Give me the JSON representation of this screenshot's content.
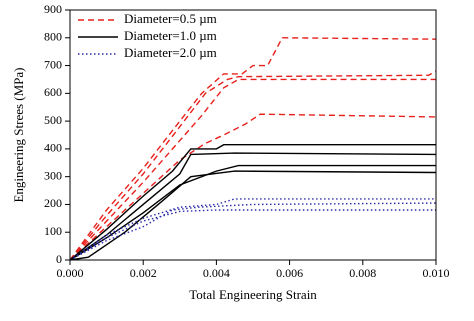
{
  "chart_data": {
    "type": "line",
    "xlabel": "Total Engineering Strain",
    "ylabel": "Engineering Strees (MPa)",
    "xlim": [
      0,
      0.01
    ],
    "xticks": [
      {
        "value": 0,
        "label": "0.000"
      },
      0.002,
      0.004,
      0.006,
      0.008,
      {
        "value": 0.01,
        "label": "0.010"
      }
    ],
    "ylim": [
      0,
      900
    ],
    "yticks": [
      0,
      100,
      200,
      300,
      400,
      500,
      600,
      700,
      800,
      900
    ],
    "legend": "upper-left",
    "series": [
      {
        "name": "Diameter=0.5 µm",
        "color": "#e8201c",
        "dash": "dashed",
        "lines": [
          {
            "x": [
              0,
              0.001,
              0.002,
              0.003,
              0.0036,
              0.0042,
              0.0047,
              0.005,
              0.0054,
              0.0058,
              0.01
            ],
            "values": [
              0,
              180,
              330,
              500,
              600,
              670,
              670,
              700,
              700,
              800,
              795
            ]
          },
          {
            "x": [
              0,
              0.001,
              0.002,
              0.003,
              0.0037,
              0.0043,
              0.0046,
              0.0098,
              0.01
            ],
            "values": [
              0,
              160,
              310,
              480,
              600,
              650,
              660,
              665,
              680
            ]
          },
          {
            "x": [
              0,
              0.001,
              0.002,
              0.003,
              0.0036,
              0.0042,
              0.0046,
              0.01
            ],
            "values": [
              0,
              140,
              280,
              430,
              520,
              620,
              650,
              650
            ]
          },
          {
            "x": [
              0,
              0.001,
              0.002,
              0.003,
              0.0037,
              0.0042,
              0.0048,
              0.0052,
              0.01
            ],
            "values": [
              0,
              120,
              240,
              360,
              420,
              450,
              490,
              525,
              515
            ]
          }
        ]
      },
      {
        "name": "Diameter=1.0 µm",
        "color": "#000000",
        "dash": "solid",
        "lines": [
          {
            "x": [
              0,
              0.001,
              0.002,
              0.0028,
              0.0033,
              0.004,
              0.0042,
              0.01
            ],
            "values": [
              0,
              110,
              230,
              320,
              400,
              400,
              415,
              415
            ]
          },
          {
            "x": [
              0,
              0.001,
              0.002,
              0.003,
              0.0033,
              0.0045,
              0.01
            ],
            "values": [
              0,
              90,
              200,
              310,
              380,
              385,
              380
            ]
          },
          {
            "x": [
              0,
              0.001,
              0.002,
              0.003,
              0.004,
              0.0046,
              0.01
            ],
            "values": [
              0,
              80,
              170,
              270,
              320,
              340,
              340
            ]
          },
          {
            "x": [
              0,
              0.0005,
              0.0015,
              0.0025,
              0.0033,
              0.0045,
              0.01
            ],
            "values": [
              0,
              10,
              100,
              210,
              300,
              320,
              315
            ]
          }
        ]
      },
      {
        "name": "Diameter=2.0 µm",
        "color": "#2a2aa8",
        "dash": "dotted",
        "lines": [
          {
            "x": [
              0,
              0.001,
              0.002,
              0.003,
              0.004,
              0.0045,
              0.01
            ],
            "values": [
              0,
              90,
              150,
              190,
              200,
              220,
              220
            ]
          },
          {
            "x": [
              0,
              0.001,
              0.002,
              0.0028,
              0.0035,
              0.005,
              0.01
            ],
            "values": [
              0,
              70,
              120,
              180,
              190,
              200,
              205
            ]
          },
          {
            "x": [
              0,
              0.001,
              0.002,
              0.003,
              0.004,
              0.01
            ],
            "values": [
              0,
              80,
              140,
              175,
              180,
              180
            ]
          }
        ]
      }
    ]
  }
}
